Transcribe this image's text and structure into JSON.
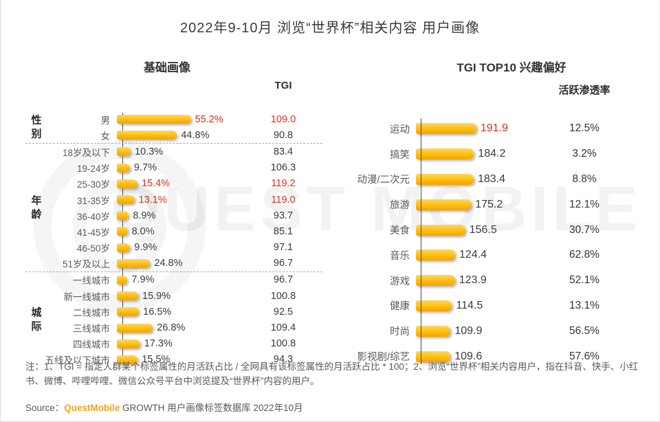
{
  "page": {
    "title": "2022年9-10月 浏览“世界杯”相关内容 用户画像",
    "note": "注：1、TGI = 指定人群某个标签属性的月活跃占比 / 全网具有该标签属性的月活跃占比 * 100；2、浏览“世界杯”相关内容用户，指在抖音、快手、小红书、微博、哔哩哔哩、微信公众号平台中浏览提及“世界杯”内容的用户。",
    "source_prefix": "Source：",
    "source_brand": "QuestMobile",
    "source_suffix": " GROWTH 用户画像标签数据库 2022年10月",
    "watermark": "QUEST MOBILE"
  },
  "colors": {
    "bar_top": "#ffd65e",
    "bar_bottom": "#f5a300",
    "highlight_red": "#e8291c",
    "brand_orange": "#f7a11a",
    "label_gray": "#595959"
  },
  "chart_data": [
    {
      "type": "bar",
      "title": "基础画像",
      "value_header": "TGI",
      "value_unit": "%",
      "xlim": [
        0,
        60
      ],
      "groups": [
        {
          "name": "性别",
          "rows": [
            {
              "label": "男",
              "value": 55.2,
              "tgi": 109.0,
              "highlight": true
            },
            {
              "label": "女",
              "value": 44.8,
              "tgi": 90.8,
              "highlight": false
            }
          ]
        },
        {
          "name": "年龄",
          "rows": [
            {
              "label": "18岁及以下",
              "value": 10.3,
              "tgi": 83.4,
              "highlight": false
            },
            {
              "label": "19-24岁",
              "value": 9.7,
              "tgi": 106.3,
              "highlight": false
            },
            {
              "label": "25-30岁",
              "value": 15.4,
              "tgi": 119.2,
              "highlight": true
            },
            {
              "label": "31-35岁",
              "value": 13.1,
              "tgi": 119.0,
              "highlight": true
            },
            {
              "label": "36-40岁",
              "value": 8.9,
              "tgi": 93.7,
              "highlight": false
            },
            {
              "label": "41-45岁",
              "value": 8.0,
              "tgi": 85.1,
              "highlight": false
            },
            {
              "label": "46-50岁",
              "value": 9.9,
              "tgi": 97.1,
              "highlight": false
            },
            {
              "label": "51岁及以上",
              "value": 24.8,
              "tgi": 96.7,
              "highlight": false
            }
          ]
        },
        {
          "name": "城际",
          "rows": [
            {
              "label": "一线城市",
              "value": 7.9,
              "tgi": 96.7,
              "highlight": false
            },
            {
              "label": "新一线城市",
              "value": 15.9,
              "tgi": 100.8,
              "highlight": false
            },
            {
              "label": "二线城市",
              "value": 16.5,
              "tgi": 92.5,
              "highlight": false
            },
            {
              "label": "三线城市",
              "value": 26.8,
              "tgi": 109.4,
              "highlight": false
            },
            {
              "label": "四线城市",
              "value": 17.3,
              "tgi": 100.8,
              "highlight": false
            },
            {
              "label": "五线及以下城市",
              "value": 15.5,
              "tgi": 94.3,
              "highlight": false
            }
          ]
        }
      ]
    },
    {
      "type": "bar",
      "title": "TGI TOP10 兴趣偏好",
      "value_header": "活跃渗透率",
      "xlim": [
        0,
        200
      ],
      "rows": [
        {
          "label": "运动",
          "tgi": 191.9,
          "penetration": "12.5%",
          "highlight": true
        },
        {
          "label": "搞笑",
          "tgi": 184.2,
          "penetration": "3.2%",
          "highlight": false
        },
        {
          "label": "动漫/二次元",
          "tgi": 183.4,
          "penetration": "8.8%",
          "highlight": false
        },
        {
          "label": "旅游",
          "tgi": 175.2,
          "penetration": "12.1%",
          "highlight": false
        },
        {
          "label": "美食",
          "tgi": 156.5,
          "penetration": "30.7%",
          "highlight": false
        },
        {
          "label": "音乐",
          "tgi": 124.4,
          "penetration": "62.8%",
          "highlight": false
        },
        {
          "label": "游戏",
          "tgi": 123.9,
          "penetration": "52.1%",
          "highlight": false
        },
        {
          "label": "健康",
          "tgi": 114.5,
          "penetration": "13.1%",
          "highlight": false
        },
        {
          "label": "时尚",
          "tgi": 109.9,
          "penetration": "56.5%",
          "highlight": false
        },
        {
          "label": "影视剧/综艺",
          "tgi": 109.6,
          "penetration": "57.6%",
          "highlight": false
        }
      ]
    }
  ]
}
